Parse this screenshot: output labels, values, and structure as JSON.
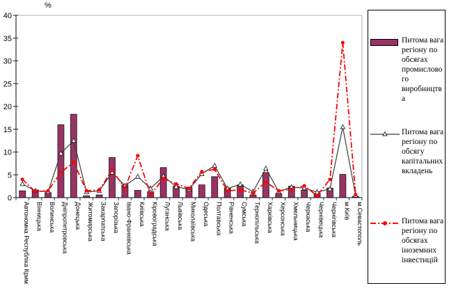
{
  "chart_data": {
    "type": "combo",
    "title": "",
    "ylabel": "%",
    "ylim": [
      0,
      40
    ],
    "ytick_step": 5,
    "yticks": [
      0,
      5,
      10,
      15,
      20,
      25,
      30,
      35,
      40
    ],
    "grid": "top-border-only",
    "legend_position": "right",
    "categories": [
      "Автономна Республіка Крим",
      "Вінницька",
      "Волинська",
      "Дніпропетровська",
      "Донецька",
      "Житомирська",
      "Закарпатська",
      "Запорізька",
      "Івано-Франківська",
      "Київська",
      "Кіровоградська",
      "Луганська",
      "Львівська",
      "Миколаївська",
      "Одеська",
      "Полтавська",
      "Рівненська",
      "Сумська",
      "Тернопільська",
      "Харківська",
      "Херсонська",
      "Хмельницька",
      "Черкаська",
      "Чернівецька",
      "Чернігівська",
      "м.Київ",
      "м.Севастополь"
    ],
    "series": [
      {
        "name": "Питома вага регіону по обсягах промислового виробництва",
        "type": "bar",
        "color": "#993366",
        "values": [
          1.5,
          1.7,
          1.1,
          16,
          18.3,
          0.4,
          0.6,
          8.8,
          2.8,
          1.6,
          1.3,
          6.6,
          2.5,
          2.3,
          2.8,
          4.6,
          2.1,
          2.8,
          0.6,
          5.5,
          0.9,
          2.5,
          1.6,
          0.9,
          2.1,
          5.1,
          0.3
        ]
      },
      {
        "name": "Питома вага регіону по обсягу капітальних вкладень",
        "type": "line",
        "marker": "triangle-open",
        "color": "#3a3a3a",
        "values": [
          3,
          1.5,
          1.3,
          9.7,
          12.5,
          1.2,
          1.5,
          5.5,
          2.6,
          4.6,
          2,
          4.7,
          2.4,
          1.8,
          5.2,
          7,
          2,
          2.9,
          1.3,
          6.4,
          1.3,
          2.3,
          2.1,
          1.2,
          1.9,
          15.5,
          0.5
        ]
      },
      {
        "name": "Питома вага регіону по обсягах іноземних інвестицій",
        "type": "line-dashdot",
        "marker": "circle-filled",
        "color": "#ff0000",
        "values": [
          4,
          1.3,
          1.5,
          5.5,
          7.8,
          1.5,
          1.7,
          6,
          2.1,
          9.2,
          0.6,
          4.2,
          3,
          2,
          5.7,
          6.2,
          1.5,
          1.7,
          1,
          3.4,
          1.5,
          1.8,
          2.6,
          0.4,
          4,
          34,
          0.7
        ]
      }
    ]
  }
}
